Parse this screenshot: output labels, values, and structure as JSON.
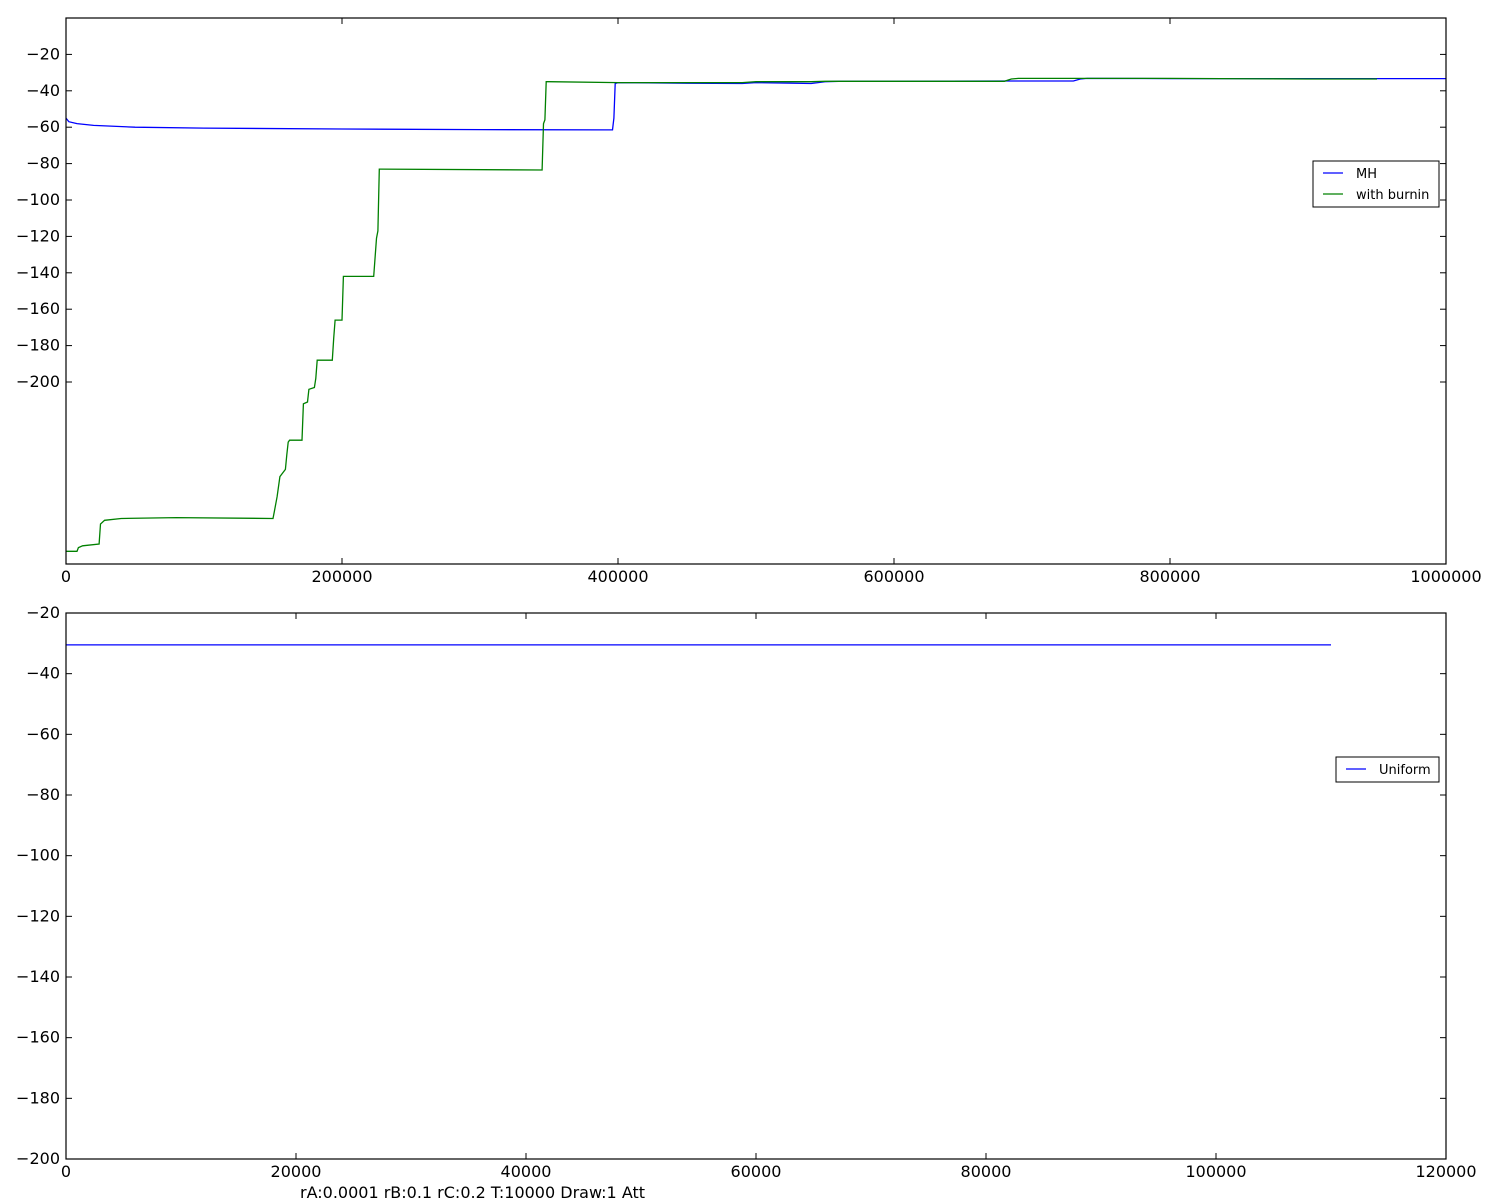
{
  "chart_data": [
    {
      "type": "line",
      "xlim": [
        0,
        1000000
      ],
      "ylim": [
        -300,
        0
      ],
      "x_ticks": [
        0,
        200000,
        400000,
        600000,
        800000,
        1000000
      ],
      "y_ticks": [
        -20,
        -40,
        -60,
        -80,
        -100,
        -120,
        -140,
        -160,
        -180,
        -200
      ],
      "grid": false,
      "legend_position": "right",
      "series": [
        {
          "name": "MH",
          "color": "#0000ff",
          "x": [
            0,
            2000,
            8000,
            20000,
            50000,
            100000,
            200000,
            300000,
            390000,
            396000,
            397000,
            398000,
            400000,
            450000,
            490000,
            500000,
            540000,
            545000,
            550000,
            560000,
            600000,
            680000,
            730000,
            735000,
            740000,
            800000,
            900000,
            950000,
            1000000
          ],
          "y": [
            -55,
            -57,
            -58,
            -59,
            -60,
            -60.5,
            -61,
            -61.3,
            -61.5,
            -61.5,
            -55,
            -36,
            -35.5,
            -35.8,
            -36,
            -35.5,
            -36,
            -35.5,
            -35,
            -34.8,
            -34.8,
            -34.6,
            -34.6,
            -33.5,
            -33.2,
            -33.3,
            -33.3,
            -33.3,
            -33.3
          ]
        },
        {
          "name": "with burnin",
          "color": "#008000",
          "x": [
            0,
            8000,
            9000,
            12000,
            24000,
            25000,
            28000,
            40000,
            80000,
            150000,
            151000,
            153000,
            155000,
            159000,
            160000,
            161000,
            162000,
            171000,
            172000,
            175000,
            176000,
            180000,
            181000,
            182000,
            193000,
            194000,
            195000,
            200000,
            201000,
            223000,
            225000,
            226000,
            227000,
            345000,
            346000,
            347000,
            348000,
            350000,
            400000,
            450000,
            490000,
            500000,
            540000,
            550000,
            600000,
            680000,
            685000,
            690000,
            740000,
            800000,
            900000,
            950000
          ],
          "y": [
            -293,
            -293,
            -291,
            -290,
            -289,
            -278,
            -276,
            -275,
            -274.5,
            -275,
            -271,
            -263,
            -252,
            -248,
            -240,
            -233,
            -232,
            -232,
            -212,
            -211,
            -204,
            -203,
            -198,
            -188,
            -188,
            -176,
            -166,
            -166,
            -142,
            -142,
            -121,
            -117,
            -83,
            -83.5,
            -58,
            -56,
            -35,
            -35,
            -35.5,
            -35.5,
            -35.5,
            -35,
            -35,
            -34.8,
            -34.8,
            -34.8,
            -33.5,
            -33.2,
            -33.2,
            -33.2,
            -33.5,
            -33.5
          ]
        }
      ]
    },
    {
      "type": "line",
      "xlim": [
        0,
        120000
      ],
      "ylim": [
        -200,
        -20
      ],
      "x_ticks": [
        0,
        20000,
        40000,
        60000,
        80000,
        100000,
        120000
      ],
      "y_ticks": [
        -20,
        -40,
        -60,
        -80,
        -100,
        -120,
        -140,
        -160,
        -180,
        -200
      ],
      "grid": false,
      "legend_position": "right",
      "series": [
        {
          "name": "Uniform",
          "color": "#0000ff",
          "x": [
            0,
            110000
          ],
          "y": [
            -30.5,
            -30.5
          ]
        }
      ]
    }
  ],
  "caption": "rA:0.0001 rB:0.1 rC:0.2 T:10000 Draw:1 Att"
}
